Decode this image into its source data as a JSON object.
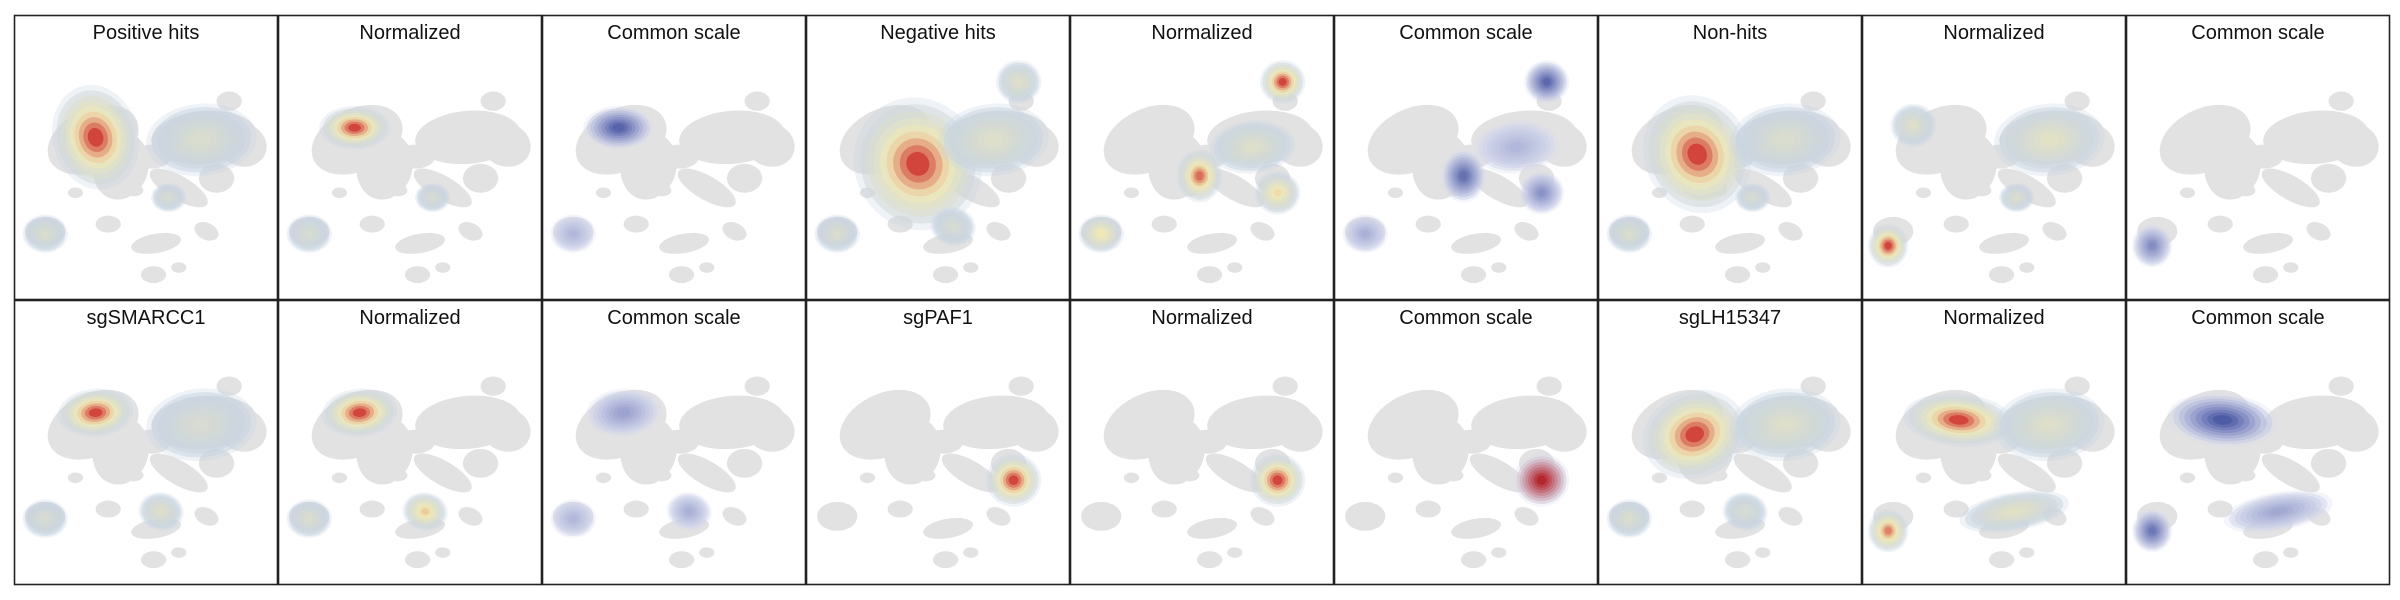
{
  "figure": {
    "rows": [
      {
        "panels": [
          {
            "title": "Positive hits",
            "style": "spectral",
            "blobs": [
              {
                "shape": "pos_main",
                "level": 1.0
              },
              {
                "shape": "upper_right",
                "level": 0.25
              },
              {
                "shape": "lower_left",
                "level": 0.25
              },
              {
                "shape": "mid_small",
                "level": 0.2
              }
            ]
          },
          {
            "title": "Normalized",
            "style": "spectral",
            "blobs": [
              {
                "shape": "pos_tight",
                "level": 1.0
              },
              {
                "shape": "lower_left",
                "level": 0.22
              },
              {
                "shape": "mid_small",
                "level": 0.2
              }
            ]
          },
          {
            "title": "Common scale",
            "style": "blue",
            "blobs": [
              {
                "shape": "pos_tight",
                "level": 0.85
              },
              {
                "shape": "lower_left",
                "level": 0.25
              }
            ]
          },
          {
            "title": "Negative hits",
            "style": "spectral",
            "blobs": [
              {
                "shape": "neg_main",
                "level": 1.0
              },
              {
                "shape": "upper_right",
                "level": 0.3
              },
              {
                "shape": "top_right_spot",
                "level": 0.3
              },
              {
                "shape": "lower_left",
                "level": 0.25
              },
              {
                "shape": "lower_mid",
                "level": 0.2
              }
            ]
          },
          {
            "title": "Normalized",
            "style": "spectral",
            "blobs": [
              {
                "shape": "top_right_spot",
                "level": 1.0
              },
              {
                "shape": "center_spot",
                "level": 0.9
              },
              {
                "shape": "right_spot",
                "level": 0.6
              },
              {
                "shape": "ring_mid",
                "level": 0.3
              },
              {
                "shape": "lower_left",
                "level": 0.55
              }
            ]
          },
          {
            "title": "Common scale",
            "style": "blue",
            "blobs": [
              {
                "shape": "top_right_spot",
                "level": 0.8
              },
              {
                "shape": "center_spot",
                "level": 0.75
              },
              {
                "shape": "right_spot",
                "level": 0.5
              },
              {
                "shape": "ring_mid",
                "level": 0.25
              },
              {
                "shape": "lower_left",
                "level": 0.3
              }
            ]
          },
          {
            "title": "Non-hits",
            "style": "spectral",
            "blobs": [
              {
                "shape": "nonhit_main",
                "level": 1.0
              },
              {
                "shape": "upper_right",
                "level": 0.25
              },
              {
                "shape": "lower_left",
                "level": 0.25
              },
              {
                "shape": "mid_small",
                "level": 0.2
              }
            ]
          },
          {
            "title": "Normalized",
            "style": "spectral",
            "blobs": [
              {
                "shape": "far_left_spot",
                "level": 1.0
              },
              {
                "shape": "left_top_spot",
                "level": 0.3
              },
              {
                "shape": "upper_right",
                "level": 0.35
              },
              {
                "shape": "mid_small",
                "level": 0.25
              }
            ]
          },
          {
            "title": "Common scale",
            "style": "blue",
            "blobs": [
              {
                "shape": "far_left_spot",
                "level": 0.55
              }
            ]
          }
        ]
      },
      {
        "panels": [
          {
            "title": "sgSMARCC1",
            "style": "spectral",
            "blobs": [
              {
                "shape": "smarcc_main",
                "level": 1.0
              },
              {
                "shape": "upper_right",
                "level": 0.22
              },
              {
                "shape": "lower_mid",
                "level": 0.3
              },
              {
                "shape": "lower_left",
                "level": 0.2
              }
            ]
          },
          {
            "title": "Normalized",
            "style": "spectral",
            "blobs": [
              {
                "shape": "smarcc_main",
                "level": 1.0
              },
              {
                "shape": "lower_mid",
                "level": 0.65
              },
              {
                "shape": "lower_left",
                "level": 0.25
              }
            ]
          },
          {
            "title": "Common scale",
            "style": "blue",
            "blobs": [
              {
                "shape": "smarcc_main",
                "level": 0.4
              },
              {
                "shape": "lower_mid",
                "level": 0.3
              },
              {
                "shape": "lower_left",
                "level": 0.25
              }
            ]
          },
          {
            "title": "sgPAF1",
            "style": "spectral",
            "blobs": [
              {
                "shape": "paf_spot",
                "level": 1.0
              }
            ]
          },
          {
            "title": "Normalized",
            "style": "spectral",
            "blobs": [
              {
                "shape": "paf_spot",
                "level": 1.0
              }
            ]
          },
          {
            "title": "Common scale",
            "style": "red",
            "blobs": [
              {
                "shape": "paf_spot",
                "level": 1.0
              }
            ]
          },
          {
            "title": "sgLH15347",
            "style": "spectral",
            "blobs": [
              {
                "shape": "lh_main",
                "level": 1.0
              },
              {
                "shape": "upper_right",
                "level": 0.3
              },
              {
                "shape": "lower_left",
                "level": 0.25
              },
              {
                "shape": "lower_mid",
                "level": 0.2
              }
            ]
          },
          {
            "title": "Normalized",
            "style": "spectral",
            "blobs": [
              {
                "shape": "lh_band",
                "level": 1.0
              },
              {
                "shape": "far_left_spot",
                "level": 0.85
              },
              {
                "shape": "lower_band",
                "level": 0.35
              },
              {
                "shape": "upper_right",
                "level": 0.3
              }
            ]
          },
          {
            "title": "Common scale",
            "style": "blue",
            "blobs": [
              {
                "shape": "lh_band",
                "level": 0.9
              },
              {
                "shape": "far_left_spot",
                "level": 0.7
              },
              {
                "shape": "lower_band",
                "level": 0.35
              }
            ]
          }
        ]
      }
    ]
  },
  "colors": {
    "background": "#ffffff",
    "frame": "#222222",
    "umap_gray": "#e2e2e2",
    "spectral_low": "#c6d3e4",
    "spectral_mid": "#f5ebb0",
    "spectral_high": "#c9181e",
    "blue_low": "#d8dcee",
    "blue_high": "#2e3d96",
    "red_high": "#b11218"
  }
}
